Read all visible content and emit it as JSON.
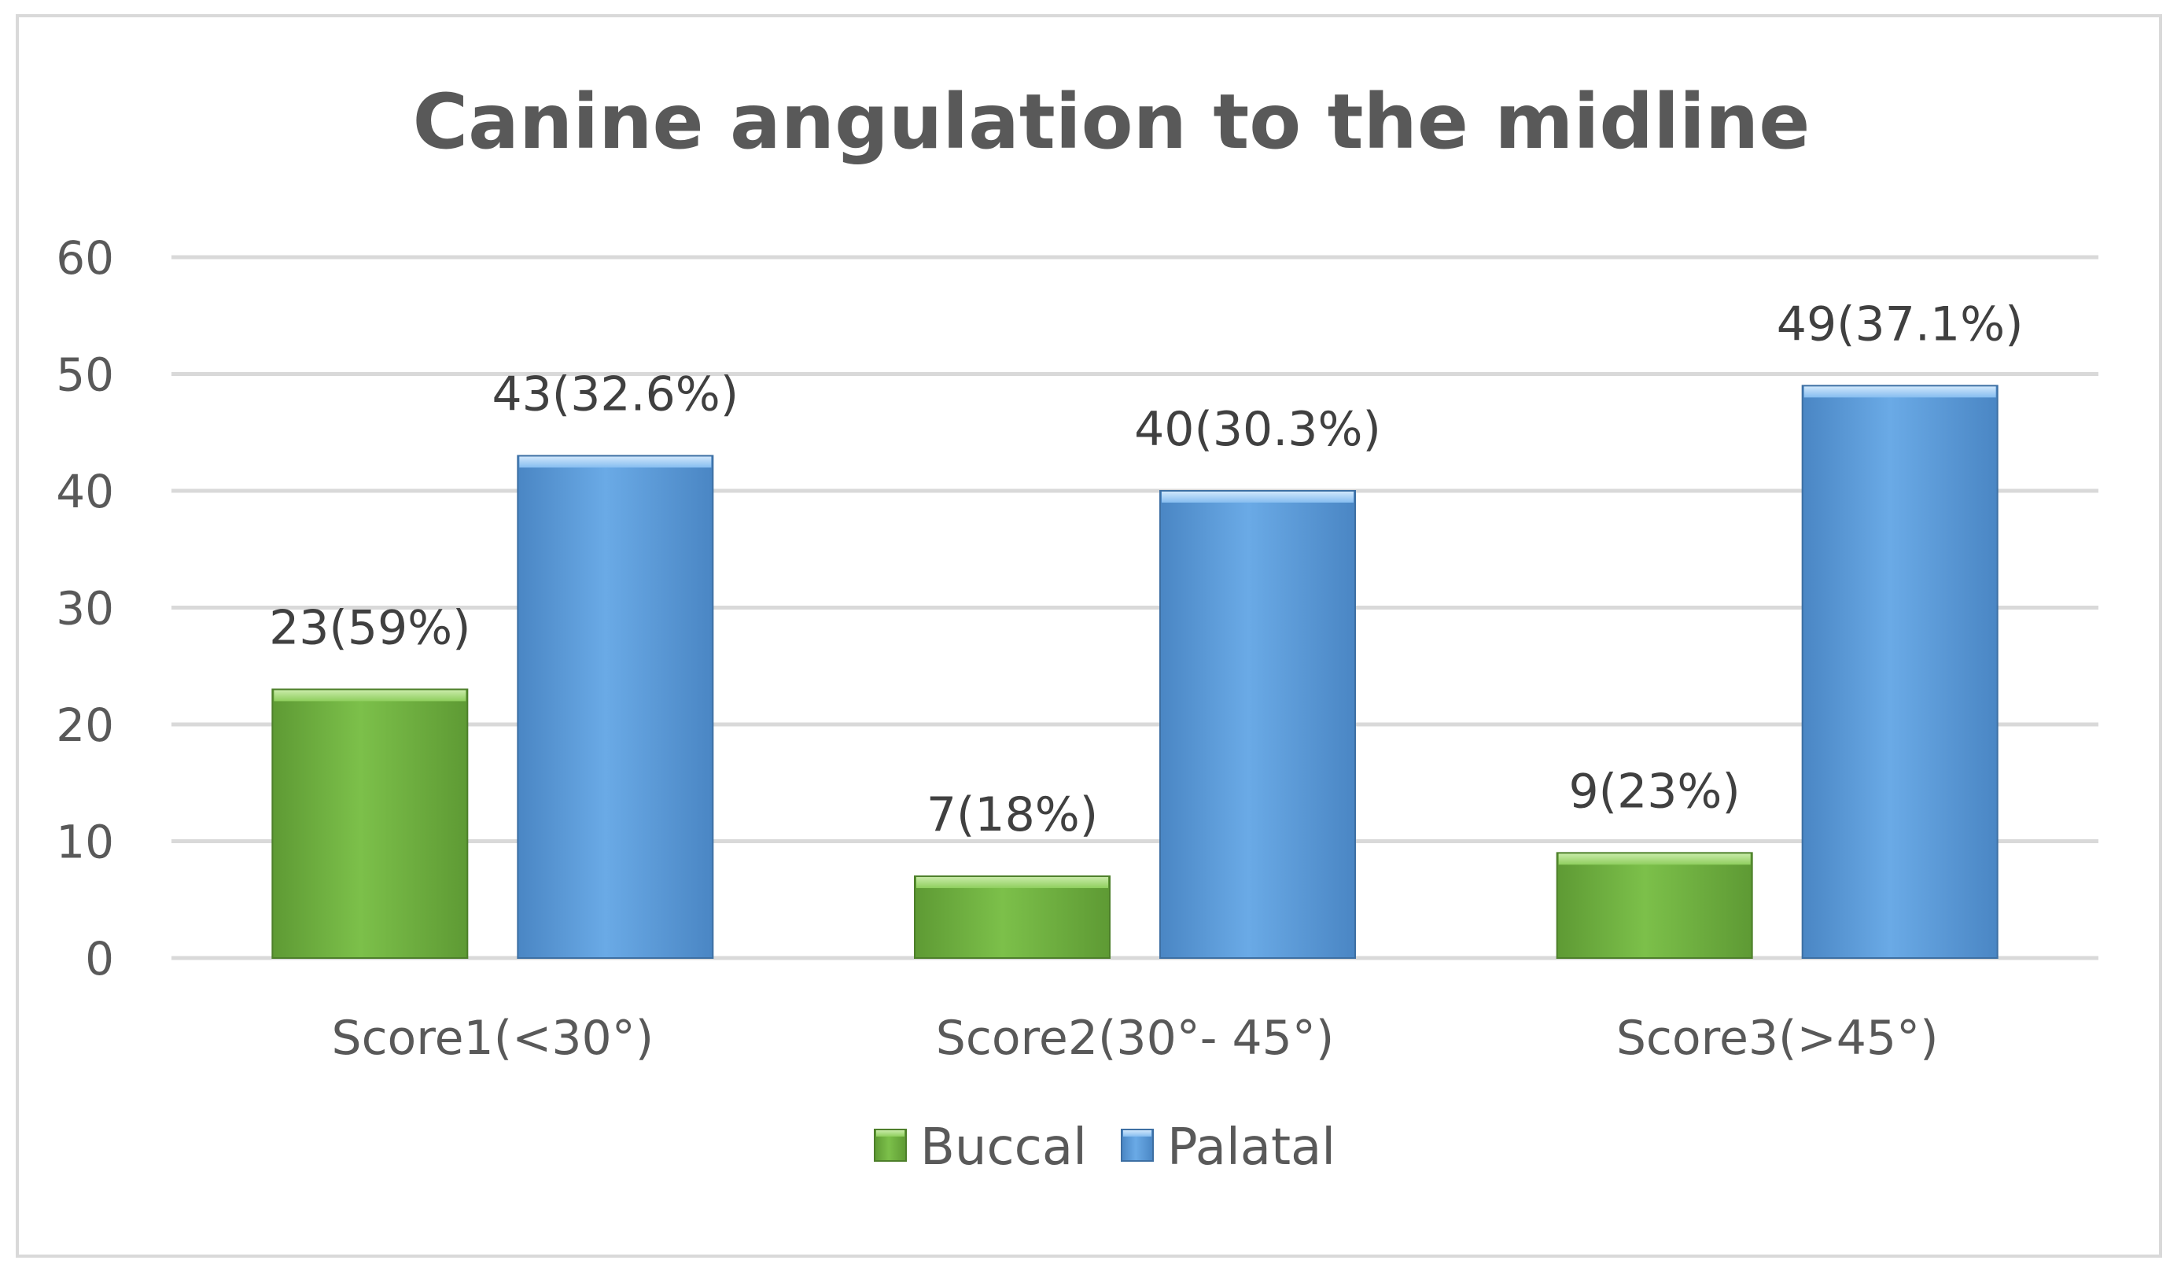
{
  "chart_data": {
    "type": "bar",
    "title": "Canine angulation to the midline",
    "xlabel": "",
    "ylabel": "",
    "ylim": [
      0,
      60
    ],
    "yticks": [
      0,
      10,
      20,
      30,
      40,
      50,
      60
    ],
    "grid": true,
    "legend_position": "bottom",
    "categories": [
      "Score1(<30°)",
      "Score2(30°- 45°)",
      "Score3(>45°)"
    ],
    "series": [
      {
        "name": "Buccal",
        "color": "#70ad47",
        "values": [
          23,
          7,
          9
        ],
        "labels": [
          "23(59%)",
          "7(18%)",
          "9(23%)"
        ]
      },
      {
        "name": "Palatal",
        "color": "#5b9bd5",
        "values": [
          43,
          40,
          49
        ],
        "labels": [
          "43(32.6%)",
          "40(30.3%)",
          "49(37.1%)"
        ]
      }
    ]
  }
}
